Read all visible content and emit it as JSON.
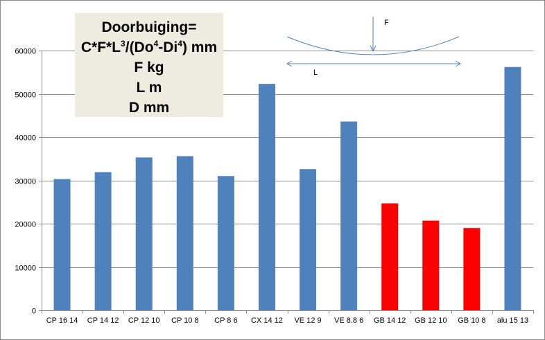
{
  "chart_data": {
    "type": "bar",
    "categories": [
      "CP 16 14",
      "CP 14 12",
      "CP 12 10",
      "CP 10 8",
      "CP 8 6",
      "CX 14 12",
      "VE 12 9",
      "VE 8.8 6",
      "GB 14 12",
      "GB 12 10",
      "GB 10 8",
      "alu 15 13"
    ],
    "values": [
      30300,
      31900,
      35300,
      35600,
      31000,
      52300,
      32600,
      43600,
      24700,
      20700,
      19000,
      56200
    ],
    "bar_colors": [
      "#4f81bd",
      "#4f81bd",
      "#4f81bd",
      "#4f81bd",
      "#4f81bd",
      "#4f81bd",
      "#4f81bd",
      "#4f81bd",
      "#ff0000",
      "#ff0000",
      "#ff0000",
      "#4f81bd"
    ],
    "ylim": [
      0,
      60000
    ],
    "yticks": [
      0,
      10000,
      20000,
      30000,
      40000,
      50000,
      60000
    ],
    "ytick_labels": [
      "0",
      "10000",
      "20000",
      "30000",
      "40000",
      "50000",
      "60000"
    ],
    "grid": true,
    "title": "",
    "xlabel": "",
    "ylabel": ""
  },
  "annotation": {
    "line1": "Doorbuiging=",
    "line2_a": "C*F*L",
    "line2_sup1": "3",
    "line2_b": "/(Do",
    "line2_sup2": "4",
    "line2_c": "-Di",
    "line2_sup3": "4",
    "line2_d": ") mm",
    "line3": "F kg",
    "line4": "L m",
    "line5": "D mm"
  },
  "diagram": {
    "force_label": "F",
    "length_label": "L"
  },
  "colors": {
    "blue_bar": "#4f81bd",
    "red_bar": "#ff0000",
    "diagram_line": "#4f81bd",
    "grid": "#8c8c8c"
  }
}
